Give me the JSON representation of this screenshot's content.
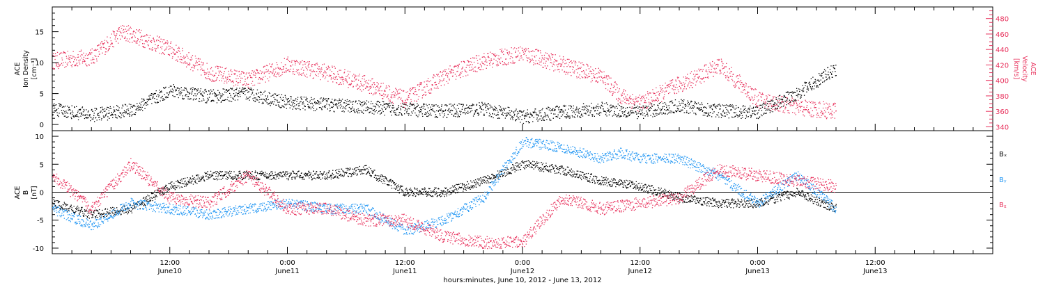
{
  "chart_data": [
    {
      "type": "scatter",
      "ylabel_left": [
        "ACE",
        "Ion Density",
        "[cm⁻³]"
      ],
      "ylabel_right": [
        "ACE",
        "Velocity",
        "[km/s]"
      ],
      "ylim_left": [
        -1,
        19
      ],
      "ylim_right": [
        335,
        495
      ],
      "yticks_left": [
        0,
        5,
        10,
        15
      ],
      "yticks_right": [
        340,
        360,
        380,
        400,
        420,
        440,
        460,
        480
      ],
      "series": [
        {
          "axis": "left",
          "color": "#000000",
          "x": [
            0,
            4,
            8,
            12,
            16,
            20,
            24,
            28,
            32,
            36,
            40,
            44,
            48,
            52,
            56,
            60,
            64,
            68,
            72,
            76,
            80
          ],
          "y": [
            2.5,
            1.5,
            2.3,
            5.5,
            4.5,
            5.0,
            3.5,
            3.2,
            2.8,
            2.4,
            2.2,
            2.5,
            1.2,
            2.0,
            2.5,
            2.0,
            3.0,
            2.2,
            2.0,
            5,
            9
          ]
        },
        {
          "axis": "right",
          "color": "#e8325d",
          "x": [
            0,
            4,
            7,
            8,
            12,
            16,
            20,
            24,
            28,
            32,
            36,
            40,
            44,
            48,
            52,
            56,
            58,
            60,
            64,
            66,
            68,
            72,
            76,
            80
          ],
          "y": [
            425,
            430,
            462,
            460,
            440,
            410,
            400,
            420,
            410,
            395,
            375,
            405,
            425,
            435,
            420,
            405,
            380,
            370,
            395,
            405,
            420,
            375,
            365,
            360
          ]
        }
      ]
    },
    {
      "type": "scatter",
      "ylabel_left": [
        "ACE",
        "B",
        "[nT]"
      ],
      "ylim": [
        -11,
        11
      ],
      "yticks": [
        -10,
        -5,
        0,
        5,
        10
      ],
      "zero_line": true,
      "legend": [
        "Bₓ",
        "Bᵧ",
        "Bᵪ"
      ],
      "series": [
        {
          "name": "Bₓ",
          "color": "#000000",
          "x": [
            0,
            4,
            8,
            12,
            16,
            20,
            24,
            28,
            32,
            36,
            40,
            44,
            48,
            52,
            56,
            60,
            64,
            68,
            72,
            76,
            80
          ],
          "y": [
            -2,
            -4,
            -3,
            1,
            3,
            3,
            3,
            3,
            4,
            0,
            0,
            2,
            5,
            4,
            2,
            1,
            -1,
            -2,
            -2,
            0,
            -3
          ]
        },
        {
          "name": "Bᵧ",
          "color": "#2196f3",
          "x": [
            0,
            4,
            8,
            12,
            16,
            20,
            24,
            28,
            32,
            36,
            40,
            44,
            48,
            52,
            56,
            58,
            60,
            64,
            68,
            72,
            76,
            80
          ],
          "y": [
            -3,
            -6,
            -2,
            -3,
            -4,
            -3,
            -2,
            -3,
            -3,
            -7,
            -5,
            -1,
            9,
            8,
            6,
            7,
            6,
            6,
            3,
            -2,
            3,
            -3
          ]
        },
        {
          "name": "Bᵪ",
          "color": "#e8325d",
          "x": [
            0,
            4,
            8,
            12,
            16,
            20,
            24,
            28,
            32,
            36,
            40,
            44,
            48,
            52,
            56,
            60,
            64,
            68,
            72,
            76,
            80
          ],
          "y": [
            3,
            -3,
            5,
            -1,
            -2,
            3,
            -3,
            -3,
            -5,
            -5,
            -8,
            -9,
            -9,
            -1,
            -3,
            -2,
            -1,
            4,
            3,
            2,
            1
          ]
        }
      ]
    }
  ],
  "x_axis": {
    "xlim_hours": [
      0,
      96
    ],
    "ticks": [
      {
        "h": 12,
        "time": "12:00",
        "day": "June10"
      },
      {
        "h": 24,
        "time": "0:00",
        "day": "June11"
      },
      {
        "h": 36,
        "time": "12:00",
        "day": "June11"
      },
      {
        "h": 48,
        "time": "0:00",
        "day": "June12"
      },
      {
        "h": 60,
        "time": "12:00",
        "day": "June12"
      },
      {
        "h": 72,
        "time": "0:00",
        "day": "June13"
      },
      {
        "h": 84,
        "time": "12:00",
        "day": "June13"
      }
    ],
    "xlabel": "hours:minutes, June 10, 2012 - June 13, 2012"
  },
  "colors": {
    "black": "#000000",
    "pink": "#e8325d",
    "blue": "#2196f3"
  }
}
